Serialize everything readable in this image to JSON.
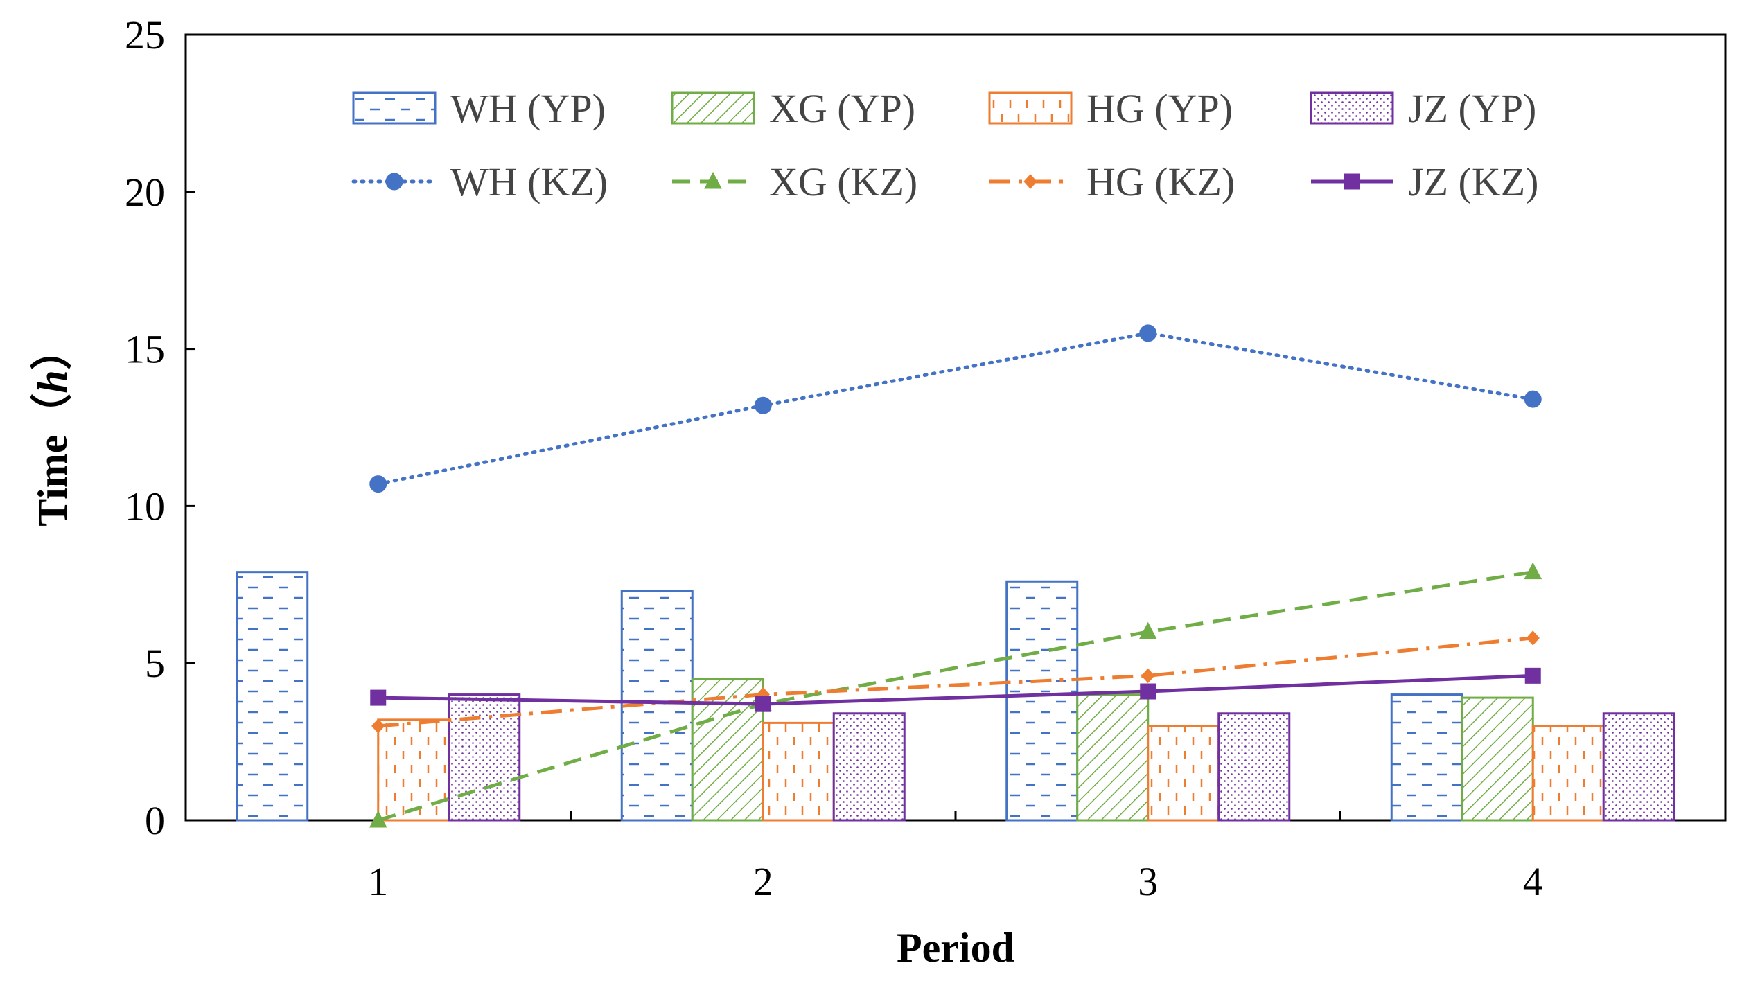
{
  "chart_data": {
    "type": "bar",
    "title": "",
    "xlabel": "Period",
    "ylabel_main": "Time",
    "ylabel_paren_open": "（",
    "ylabel_unit": "h",
    "ylabel_paren_close": "）",
    "categories": [
      "1",
      "2",
      "3",
      "4"
    ],
    "ylim": [
      0,
      25
    ],
    "yticks": [
      "0",
      "5",
      "10",
      "15",
      "20",
      "25"
    ],
    "grid": false,
    "legend_position": "top",
    "bar_series": [
      {
        "name": "WH (YP)",
        "color": "#4472C4",
        "pattern": "dashes",
        "values": [
          7.9,
          7.3,
          7.6,
          4.0
        ]
      },
      {
        "name": "XG (YP)",
        "color": "#70AD47",
        "pattern": "diagonal",
        "values": [
          0.0,
          4.5,
          4.0,
          3.9
        ]
      },
      {
        "name": "HG (YP)",
        "color": "#ED7D31",
        "pattern": "vdash",
        "values": [
          3.2,
          3.1,
          3.0,
          3.0
        ]
      },
      {
        "name": "JZ (YP)",
        "color": "#7030A0",
        "pattern": "dots",
        "values": [
          4.0,
          3.4,
          3.4,
          3.4
        ]
      }
    ],
    "line_series": [
      {
        "name": "WH (KZ)",
        "color": "#4472C4",
        "dash": "dotted",
        "marker": "circle",
        "values": [
          10.7,
          13.2,
          15.5,
          13.4
        ]
      },
      {
        "name": "XG (KZ)",
        "color": "#70AD47",
        "dash": "dashed",
        "marker": "triangle",
        "values": [
          0.0,
          3.7,
          6.0,
          7.9
        ]
      },
      {
        "name": "HG (KZ)",
        "color": "#ED7D31",
        "dash": "dashdot",
        "marker": "diamond",
        "values": [
          3.0,
          4.0,
          4.6,
          5.8
        ]
      },
      {
        "name": "JZ (KZ)",
        "color": "#7030A0",
        "dash": "solid",
        "marker": "square",
        "values": [
          3.9,
          3.7,
          4.1,
          4.6
        ]
      }
    ]
  }
}
